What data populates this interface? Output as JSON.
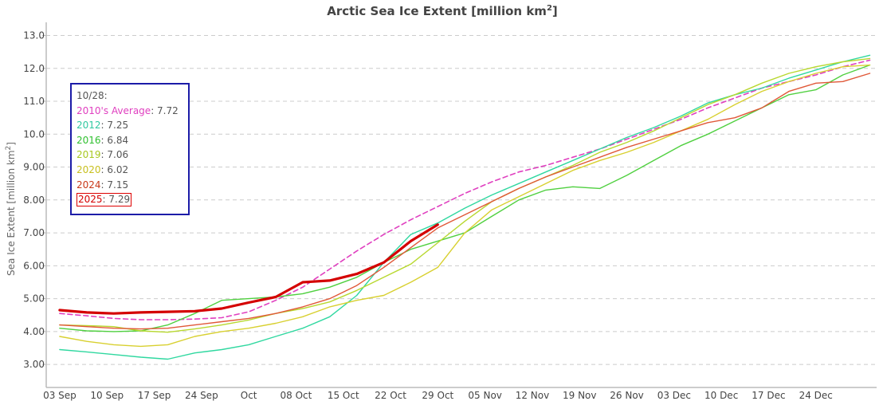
{
  "chart_data": {
    "type": "line",
    "title": "Arctic Sea Ice Extent [million km",
    "title_sup": "2",
    "title_end": "]",
    "ylabel": "Sea Ice Extent [million km",
    "ylabel_sup": "2",
    "ylabel_end": "]",
    "xlabel": "",
    "ylim": [
      2.3,
      13.4
    ],
    "xlim_days_from_03_Sep": [
      -2,
      121
    ],
    "grid": true,
    "y_ticks": [
      {
        "value": 13.0,
        "label": "13.0"
      },
      {
        "value": 12.0,
        "label": "12.0"
      },
      {
        "value": 11.0,
        "label": "11.0"
      },
      {
        "value": 10.0,
        "label": "10.0"
      },
      {
        "value": 9.0,
        "label": "9.00"
      },
      {
        "value": 8.0,
        "label": "8.00"
      },
      {
        "value": 7.0,
        "label": "7.00"
      },
      {
        "value": 6.0,
        "label": "6.00"
      },
      {
        "value": 5.0,
        "label": "5.00"
      },
      {
        "value": 4.0,
        "label": "4.00"
      },
      {
        "value": 3.0,
        "label": "3.00"
      }
    ],
    "x_ticks": [
      {
        "day": 0,
        "label": "03 Sep"
      },
      {
        "day": 7,
        "label": "10 Sep"
      },
      {
        "day": 14,
        "label": "17 Sep"
      },
      {
        "day": 21,
        "label": "24 Sep"
      },
      {
        "day": 28,
        "label": "Oct"
      },
      {
        "day": 35,
        "label": "08 Oct"
      },
      {
        "day": 42,
        "label": "15 Oct"
      },
      {
        "day": 49,
        "label": "22 Oct"
      },
      {
        "day": 56,
        "label": "29 Oct"
      },
      {
        "day": 63,
        "label": "05 Nov"
      },
      {
        "day": 70,
        "label": "12 Nov"
      },
      {
        "day": 77,
        "label": "19 Nov"
      },
      {
        "day": 84,
        "label": "26 Nov"
      },
      {
        "day": 91,
        "label": "03 Dec"
      },
      {
        "day": 98,
        "label": "10 Dec"
      },
      {
        "day": 105,
        "label": "17 Dec"
      },
      {
        "day": 112,
        "label": "24 Dec"
      }
    ],
    "x_days": [
      0,
      4,
      8,
      12,
      16,
      20,
      24,
      28,
      32,
      36,
      40,
      44,
      48,
      52,
      56,
      60,
      64,
      68,
      72,
      76,
      80,
      84,
      88,
      92,
      96,
      100,
      104,
      108,
      112,
      116,
      120
    ],
    "series": [
      {
        "name": "2010's Average",
        "color": "#e040c0",
        "dashed": true,
        "width": 1.6,
        "values": [
          4.55,
          4.48,
          4.4,
          4.36,
          4.36,
          4.38,
          4.42,
          4.6,
          4.95,
          5.35,
          5.9,
          6.45,
          6.95,
          7.4,
          7.8,
          8.2,
          8.55,
          8.85,
          9.05,
          9.3,
          9.55,
          9.85,
          10.15,
          10.45,
          10.8,
          11.1,
          11.4,
          11.6,
          11.8,
          12.05,
          12.25
        ]
      },
      {
        "name": "2012",
        "color": "#30d8a0",
        "dashed": false,
        "width": 1.4,
        "values": [
          3.45,
          3.38,
          3.3,
          3.22,
          3.16,
          3.35,
          3.45,
          3.6,
          3.85,
          4.1,
          4.45,
          5.1,
          6.1,
          6.95,
          7.3,
          7.75,
          8.15,
          8.5,
          8.85,
          9.2,
          9.55,
          9.9,
          10.2,
          10.55,
          10.95,
          11.2,
          11.4,
          11.7,
          11.95,
          12.2,
          12.4
        ]
      },
      {
        "name": "2016",
        "color": "#50d040",
        "dashed": false,
        "width": 1.4,
        "values": [
          4.1,
          4.02,
          4.0,
          4.02,
          4.2,
          4.55,
          4.95,
          5.0,
          5.05,
          5.15,
          5.35,
          5.65,
          6.1,
          6.5,
          6.75,
          7.0,
          7.5,
          8.0,
          8.3,
          8.4,
          8.35,
          8.75,
          9.2,
          9.65,
          10.0,
          10.4,
          10.8,
          11.2,
          11.35,
          11.8,
          12.1
        ]
      },
      {
        "name": "2019",
        "color": "#b8d830",
        "dashed": false,
        "width": 1.4,
        "values": [
          4.2,
          4.18,
          4.15,
          4.02,
          3.98,
          4.08,
          4.2,
          4.35,
          4.55,
          4.7,
          4.9,
          5.25,
          5.65,
          6.05,
          6.7,
          7.35,
          7.95,
          8.35,
          8.7,
          9.05,
          9.45,
          9.75,
          10.1,
          10.5,
          10.9,
          11.2,
          11.55,
          11.85,
          12.05,
          12.2,
          12.3
        ]
      },
      {
        "name": "2020",
        "color": "#d8d030",
        "dashed": false,
        "width": 1.4,
        "values": [
          3.85,
          3.7,
          3.6,
          3.55,
          3.6,
          3.85,
          4.0,
          4.1,
          4.25,
          4.45,
          4.75,
          4.95,
          5.1,
          5.5,
          5.95,
          7.0,
          7.7,
          8.1,
          8.5,
          8.9,
          9.2,
          9.45,
          9.75,
          10.1,
          10.45,
          10.9,
          11.3,
          11.6,
          11.85,
          12.05,
          12.1
        ]
      },
      {
        "name": "2024",
        "color": "#e05838",
        "dashed": false,
        "width": 1.4,
        "values": [
          4.2,
          4.15,
          4.1,
          4.08,
          4.1,
          4.2,
          4.3,
          4.4,
          4.55,
          4.75,
          5.0,
          5.4,
          5.95,
          6.55,
          7.15,
          7.55,
          7.95,
          8.35,
          8.7,
          9.0,
          9.3,
          9.6,
          9.85,
          10.1,
          10.35,
          10.5,
          10.8,
          11.3,
          11.55,
          11.6,
          11.85
        ]
      },
      {
        "name": "2025",
        "color": "#d40000",
        "dashed": false,
        "width": 3.2,
        "values": [
          4.65,
          4.58,
          4.55,
          4.58,
          4.6,
          4.62,
          4.7,
          4.88,
          5.05,
          5.5,
          5.55,
          5.75,
          6.1,
          6.75,
          7.25
        ]
      }
    ]
  },
  "legend": {
    "date": "10/28:",
    "entries": [
      {
        "name": "2010's Average",
        "value": ": 7.72",
        "color": "#e040c0"
      },
      {
        "name": "2012",
        "value": ": 7.25",
        "color": "#30c8a0"
      },
      {
        "name": "2016",
        "value": ": 6.84",
        "color": "#30c030"
      },
      {
        "name": "2019",
        "value": ": 7.06",
        "color": "#a8c820"
      },
      {
        "name": "2020",
        "value": ": 6.02",
        "color": "#c8c020"
      },
      {
        "name": "2024",
        "value": ": 7.15",
        "color": "#c83818"
      },
      {
        "name": "2025",
        "value": ": 7.29",
        "color": "#d40000"
      }
    ]
  }
}
